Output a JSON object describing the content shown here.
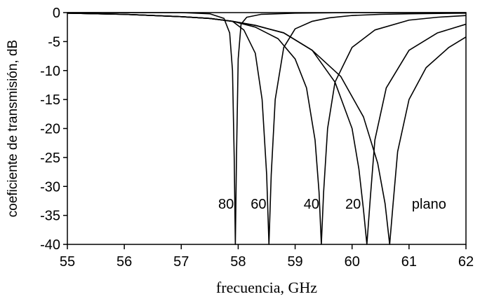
{
  "chart_data": {
    "type": "line",
    "title": "",
    "xlabel": "frecuencia, GHz",
    "ylabel": "coeficiente de transmisión, dB",
    "xlim": [
      55,
      62
    ],
    "ylim": [
      -40,
      0
    ],
    "xticks": [
      "55",
      "56",
      "57",
      "58",
      "59",
      "60",
      "61",
      "62"
    ],
    "yticks": [
      "0",
      "-5",
      "-10",
      "-15",
      "-20",
      "-25",
      "-30",
      "-35",
      "-40"
    ],
    "grid": false,
    "legend": "none",
    "series": [
      {
        "name": "80",
        "x": [
          55,
          56,
          57,
          57.5,
          57.75,
          57.85,
          57.9,
          57.93,
          57.95,
          57.97,
          58.0,
          58.05,
          58.15,
          58.4,
          59,
          60,
          61,
          62
        ],
        "y": [
          0,
          0,
          0,
          -0.2,
          -1.0,
          -3.5,
          -10,
          -25,
          -40,
          -25,
          -8,
          -2,
          -0.8,
          -0.3,
          -0.1,
          0,
          0,
          0
        ]
      },
      {
        "name": "60",
        "x": [
          55,
          56,
          57,
          57.5,
          57.9,
          58.1,
          58.3,
          58.42,
          58.5,
          58.54,
          58.58,
          58.65,
          58.8,
          59,
          59.3,
          59.6,
          60,
          60.5,
          61,
          62
        ],
        "y": [
          -0.1,
          -0.3,
          -0.7,
          -1.0,
          -1.5,
          -3,
          -7,
          -15,
          -28,
          -40,
          -28,
          -15,
          -6,
          -2.8,
          -1.5,
          -0.9,
          -0.5,
          -0.3,
          -0.2,
          -0.1
        ]
      },
      {
        "name": "40",
        "x": [
          55,
          56,
          57,
          57.5,
          57.9,
          58.3,
          58.7,
          59,
          59.2,
          59.35,
          59.42,
          59.46,
          59.5,
          59.57,
          59.7,
          60,
          60.4,
          61,
          61.5,
          62
        ],
        "y": [
          -0.1,
          -0.3,
          -0.7,
          -1.0,
          -1.5,
          -2.5,
          -4.5,
          -8,
          -13,
          -22,
          -31,
          -40,
          -31,
          -20,
          -12,
          -6,
          -3,
          -1.3,
          -0.8,
          -0.5
        ]
      },
      {
        "name": "20",
        "x": [
          55,
          56,
          57,
          57.5,
          57.9,
          58.3,
          58.8,
          59.3,
          59.7,
          60,
          60.12,
          60.2,
          60.26,
          60.32,
          60.4,
          60.6,
          61,
          61.5,
          62
        ],
        "y": [
          -0.1,
          -0.3,
          -0.7,
          -1.0,
          -1.5,
          -2.2,
          -3.5,
          -6.5,
          -12,
          -20,
          -27,
          -34,
          -40,
          -32,
          -22,
          -13,
          -6.5,
          -3.5,
          -2
        ]
      },
      {
        "name": "plano",
        "x": [
          55,
          56,
          57,
          57.5,
          57.9,
          58.3,
          58.8,
          59.3,
          59.8,
          60.2,
          60.45,
          60.58,
          60.66,
          60.72,
          60.8,
          61,
          61.3,
          61.7,
          62
        ],
        "y": [
          -0.1,
          -0.3,
          -0.7,
          -1.0,
          -1.5,
          -2.2,
          -3.5,
          -6.5,
          -11,
          -18,
          -26,
          -33,
          -40,
          -33,
          -24,
          -15,
          -9.5,
          -6,
          -4.2
        ]
      }
    ],
    "annotations": [
      {
        "text": "80",
        "x": 57.65,
        "y": -33
      },
      {
        "text": "60",
        "x": 58.22,
        "y": -33
      },
      {
        "text": "40",
        "x": 59.15,
        "y": -33
      },
      {
        "text": "20",
        "x": 59.88,
        "y": -33
      },
      {
        "text": "plano",
        "x": 61.05,
        "y": -33
      }
    ]
  }
}
